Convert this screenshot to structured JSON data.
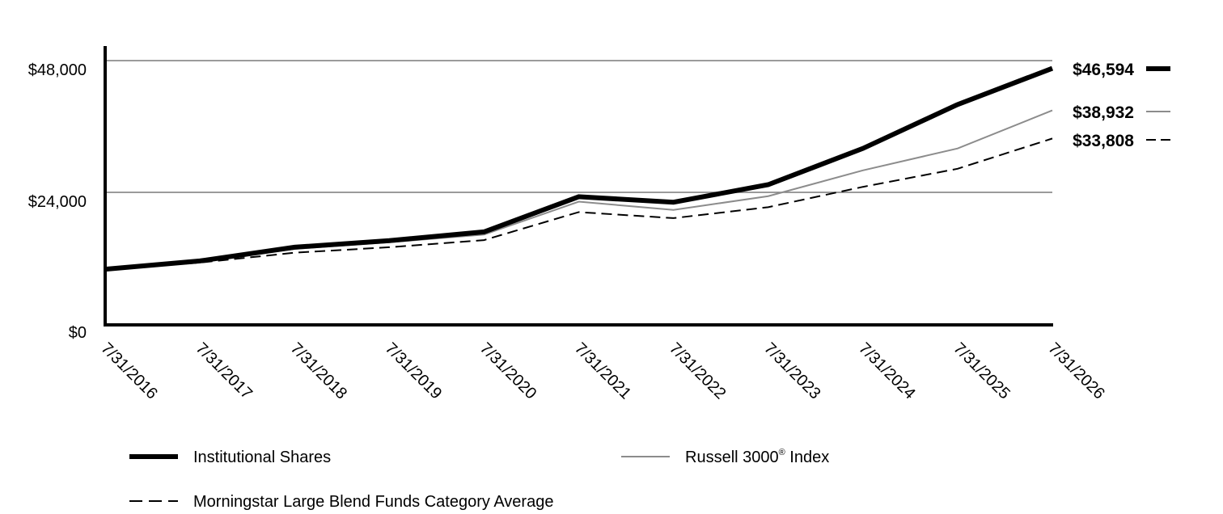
{
  "chart_data": {
    "type": "line",
    "title": "",
    "xlabel": "",
    "ylabel": "",
    "x": [
      "7/31/2016",
      "7/31/2017",
      "7/31/2018",
      "7/31/2019",
      "7/31/2020",
      "7/31/2021",
      "7/31/2022",
      "7/31/2023",
      "7/31/2024",
      "7/31/2025",
      "7/31/2026"
    ],
    "ylim": [
      0,
      48000
    ],
    "y_ticks": [
      {
        "value": 0,
        "label": "$0"
      },
      {
        "value": 24000,
        "label": "$24,000"
      },
      {
        "value": 48000,
        "label": "$48,000"
      }
    ],
    "gridlines": [
      24000,
      48000
    ],
    "legend_placement": "bottom",
    "series": [
      {
        "name": "Institutional Shares",
        "style": "thick-solid",
        "color": "#000000",
        "end_label": "$46,594",
        "values": [
          10000,
          11500,
          14000,
          15200,
          16800,
          23200,
          22200,
          25400,
          32000,
          40000,
          46594
        ]
      },
      {
        "name": "Russell 3000",
        "name_sup": "®",
        "name_suffix": " Index",
        "style": "thin-solid",
        "color": "#8c8c8c",
        "end_label": "$38,932",
        "values": [
          10000,
          11400,
          13700,
          14900,
          16300,
          22300,
          20800,
          23300,
          28000,
          32000,
          38932
        ]
      },
      {
        "name": "Morningstar Large Blend Funds Category Average",
        "style": "dashed",
        "color": "#000000",
        "end_label": "$33,808",
        "values": [
          10000,
          11200,
          13000,
          14000,
          15300,
          20400,
          19300,
          21300,
          25000,
          28300,
          33808
        ]
      }
    ]
  }
}
